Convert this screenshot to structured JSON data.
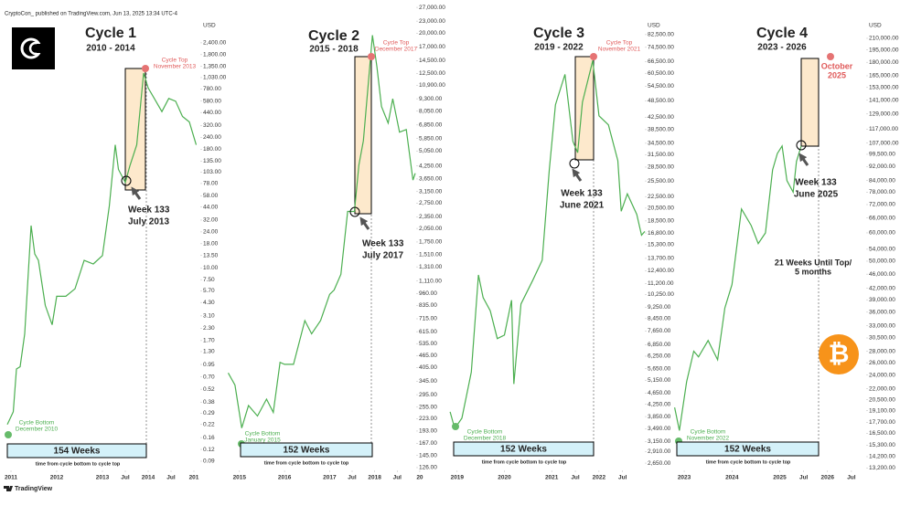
{
  "header": {
    "byline": "CryptoCon_ published on TradingView.com, Jun 13, 2025 13:34 UTC-4",
    "footer": "TradingView"
  },
  "chart_data": [
    {
      "type": "line",
      "title": "Cycle 1",
      "subtitle": "2010 - 2014",
      "axis_unit": "USD",
      "log_scale": true,
      "color": "#4caf50",
      "top_label": [
        "Cycle Top",
        "November 2013"
      ],
      "bottom_label": [
        "Cycle Bottom",
        "December 2010"
      ],
      "week_label": [
        "Week 133",
        "July 2013"
      ],
      "duration": "154 Weeks",
      "duration_note": "time from cycle bottom to cycle top",
      "xlim": [
        2010.76,
        2015.12
      ],
      "ylim": [
        0.072,
        6100
      ],
      "xticks": [
        2011,
        2012,
        2013,
        {
          "value": 2013.5,
          "label": "Jul"
        },
        2014,
        {
          "value": 2014.5,
          "label": "Jul"
        },
        {
          "value": 2015,
          "label": "201"
        }
      ],
      "yticks": [
        {
          "value": 2400,
          "label": "2,400.00"
        },
        {
          "value": 1800,
          "label": "1,800.00"
        },
        {
          "value": 1350,
          "label": "1,350.00"
        },
        {
          "value": 1030,
          "label": "1,030.00"
        },
        {
          "value": 780,
          "label": "780.00"
        },
        {
          "value": 580,
          "label": "580.00"
        },
        {
          "value": 440,
          "label": "440.00"
        },
        {
          "value": 320,
          "label": "320.00"
        },
        {
          "value": 240,
          "label": "240.00"
        },
        {
          "value": 180,
          "label": "180.00"
        },
        {
          "value": 135,
          "label": "135.00"
        },
        {
          "value": 103,
          "label": "103.00"
        },
        {
          "value": 78,
          "label": "78.00"
        },
        {
          "value": 58,
          "label": "58.00"
        },
        {
          "value": 44,
          "label": "44.00"
        },
        {
          "value": 32,
          "label": "32.00"
        },
        {
          "value": 24,
          "label": "24.00"
        },
        {
          "value": 18,
          "label": "18.00"
        },
        {
          "value": 13.5,
          "label": "13.50"
        },
        {
          "value": 10,
          "label": "10.00"
        },
        {
          "value": 7.5,
          "label": "7.50"
        },
        {
          "value": 5.7,
          "label": "5.70"
        },
        {
          "value": 4.3,
          "label": "4.30"
        },
        {
          "value": 3.1,
          "label": "3.10"
        },
        {
          "value": 2.3,
          "label": "2.30"
        },
        {
          "value": 1.7,
          "label": "1.70"
        },
        {
          "value": 1.3,
          "label": "1.30"
        },
        0.95,
        {
          "value": 0.7,
          "label": "0.70"
        },
        0.52,
        0.38,
        0.29,
        0.22,
        0.16,
        0.12,
        0.09
      ],
      "x": [
        2010.92,
        2011.05,
        2011.12,
        2011.2,
        2011.3,
        2011.44,
        2011.52,
        2011.6,
        2011.75,
        2011.9,
        2012.0,
        2012.2,
        2012.4,
        2012.6,
        2012.8,
        2013.0,
        2013.15,
        2013.28,
        2013.35,
        2013.5,
        2013.6,
        2013.75,
        2013.9,
        2014.0,
        2014.15,
        2014.3,
        2014.45,
        2014.6,
        2014.75,
        2014.9,
        2015.05
      ],
      "values": [
        0.22,
        0.3,
        0.85,
        0.9,
        2.0,
        28,
        14,
        12,
        4,
        2.5,
        5,
        5,
        6,
        12,
        11,
        13.5,
        45,
        200,
        110,
        80,
        120,
        200,
        1150,
        800,
        600,
        450,
        620,
        580,
        400,
        350,
        200
      ]
    },
    {
      "type": "line",
      "title": "Cycle 2",
      "subtitle": "2015 - 2018",
      "log_scale": true,
      "color": "#4caf50",
      "top_label": [
        "Cycle Top",
        "December 2017"
      ],
      "bottom_label": [
        "Cycle Bottom",
        "January 2015"
      ],
      "week_label": [
        "Week 133",
        "July 2017"
      ],
      "duration": "152 Weeks",
      "duration_note": "time from cycle bottom to cycle top",
      "xlim": [
        2014.72,
        2018.92
      ],
      "ylim": [
        122,
        27900
      ],
      "xticks": [
        2015,
        2016,
        2017,
        {
          "value": 2017.5,
          "label": "Jul"
        },
        2018,
        {
          "value": 2018.5,
          "label": "Jul"
        },
        {
          "value": 2019,
          "label": "20"
        }
      ],
      "yticks": [
        {
          "value": 27000,
          "label": "27,000.00"
        },
        {
          "value": 23000,
          "label": "23,000.00"
        },
        {
          "value": 20000,
          "label": "20,000.00"
        },
        {
          "value": 17000,
          "label": "17,000.00"
        },
        {
          "value": 14500,
          "label": "14,500.00"
        },
        {
          "value": 12500,
          "label": "12,500.00"
        },
        {
          "value": 10900,
          "label": "10,900.00"
        },
        {
          "value": 9300,
          "label": "9,300.00"
        },
        {
          "value": 8050,
          "label": "8,050.00"
        },
        {
          "value": 6850,
          "label": "6,850.00"
        },
        {
          "value": 5850,
          "label": "5,850.00"
        },
        {
          "value": 5050,
          "label": "5,050.00"
        },
        {
          "value": 4250,
          "label": "4,250.00"
        },
        {
          "value": 3650,
          "label": "3,650.00"
        },
        {
          "value": 3150,
          "label": "3,150.00"
        },
        {
          "value": 2750,
          "label": "2,750.00"
        },
        {
          "value": 2350,
          "label": "2,350.00"
        },
        {
          "value": 2050,
          "label": "2,050.00"
        },
        {
          "value": 1750,
          "label": "1,750.00"
        },
        {
          "value": 1510,
          "label": "1,510.00"
        },
        {
          "value": 1310,
          "label": "1,310.00"
        },
        {
          "value": 1110,
          "label": "1,110.00"
        },
        {
          "value": 960,
          "label": "960.00"
        },
        {
          "value": 835,
          "label": "835.00"
        },
        {
          "value": 715,
          "label": "715.00"
        },
        {
          "value": 615,
          "label": "615.00"
        },
        {
          "value": 535,
          "label": "535.00"
        },
        {
          "value": 465,
          "label": "465.00"
        },
        {
          "value": 405,
          "label": "405.00"
        },
        {
          "value": 345,
          "label": "345.00"
        },
        {
          "value": 295,
          "label": "295.00"
        },
        {
          "value": 255,
          "label": "255.00"
        },
        {
          "value": 223,
          "label": "223.00"
        },
        {
          "value": 193,
          "label": "193.00"
        },
        {
          "value": 167,
          "label": "167.00"
        },
        {
          "value": 145,
          "label": "145.00"
        },
        {
          "value": 126,
          "label": "126.00"
        }
      ],
      "x": [
        2014.75,
        2014.9,
        2015.05,
        2015.2,
        2015.4,
        2015.6,
        2015.75,
        2015.9,
        2016.0,
        2016.2,
        2016.45,
        2016.6,
        2016.8,
        2017.0,
        2017.1,
        2017.25,
        2017.4,
        2017.55,
        2017.65,
        2017.75,
        2017.95,
        2018.05,
        2018.15,
        2018.3,
        2018.4,
        2018.55,
        2018.7,
        2018.85,
        2018.9
      ],
      "values": [
        380,
        330,
        200,
        260,
        230,
        280,
        240,
        430,
        420,
        420,
        700,
        600,
        700,
        950,
        1000,
        1200,
        2500,
        2500,
        4300,
        5700,
        19500,
        13500,
        8500,
        7000,
        9300,
        6300,
        6500,
        3600,
        3900
      ]
    },
    {
      "type": "line",
      "title": "Cycle 3",
      "subtitle": "2019 - 2022",
      "axis_unit": "USD",
      "log_scale": true,
      "color": "#4caf50",
      "top_label": [
        "Cycle Top",
        "November 2021"
      ],
      "bottom_label": [
        "Cycle Bottom",
        "December 2018"
      ],
      "week_label": [
        "Week 133",
        "June 2021"
      ],
      "duration": "152 Weeks",
      "duration_note": "time from cycle bottom to cycle top",
      "xlim": [
        2018.81,
        2022.97
      ],
      "ylim": [
        2500,
        105000
      ],
      "xticks": [
        2019,
        2020,
        2021,
        {
          "value": 2021.5,
          "label": "Jul"
        },
        2022,
        {
          "value": 2022.5,
          "label": "Jul"
        }
      ],
      "yticks": [
        {
          "value": 82500,
          "label": "82,500.00"
        },
        {
          "value": 74500,
          "label": "74,500.00"
        },
        {
          "value": 66500,
          "label": "66,500.00"
        },
        {
          "value": 60500,
          "label": "60,500.00"
        },
        {
          "value": 54500,
          "label": "54,500.00"
        },
        {
          "value": 48500,
          "label": "48,500.00"
        },
        {
          "value": 42500,
          "label": "42,500.00"
        },
        {
          "value": 38500,
          "label": "38,500.00"
        },
        {
          "value": 34500,
          "label": "34,500.00"
        },
        {
          "value": 31500,
          "label": "31,500.00"
        },
        {
          "value": 28500,
          "label": "28,500.00"
        },
        {
          "value": 25500,
          "label": "25,500.00"
        },
        {
          "value": 22500,
          "label": "22,500.00"
        },
        {
          "value": 20500,
          "label": "20,500.00"
        },
        {
          "value": 18500,
          "label": "18,500.00"
        },
        {
          "value": 16800,
          "label": "16,800.00"
        },
        {
          "value": 15300,
          "label": "15,300.00"
        },
        {
          "value": 13700,
          "label": "13,700.00"
        },
        {
          "value": 12400,
          "label": "12,400.00"
        },
        {
          "value": 11200,
          "label": "11,200.00"
        },
        {
          "value": 10250,
          "label": "10,250.00"
        },
        {
          "value": 9250,
          "label": "9,250.00"
        },
        {
          "value": 8450,
          "label": "8,450.00"
        },
        {
          "value": 7650,
          "label": "7,650.00"
        },
        {
          "value": 6850,
          "label": "6,850.00"
        },
        {
          "value": 6250,
          "label": "6,250.00"
        },
        {
          "value": 5650,
          "label": "5,650.00"
        },
        {
          "value": 5150,
          "label": "5,150.00"
        },
        {
          "value": 4650,
          "label": "4,650.00"
        },
        {
          "value": 4250,
          "label": "4,250.00"
        },
        {
          "value": 3850,
          "label": "3,850.00"
        },
        {
          "value": 3490,
          "label": "3,490.00"
        },
        {
          "value": 3150,
          "label": "3,150.00"
        },
        {
          "value": 2910,
          "label": "2,910.00"
        },
        {
          "value": 2650,
          "label": "2,650.00"
        }
      ],
      "x": [
        2018.85,
        2018.95,
        2019.1,
        2019.3,
        2019.45,
        2019.55,
        2019.7,
        2019.85,
        2020.0,
        2020.15,
        2020.2,
        2020.35,
        2020.6,
        2020.8,
        2020.95,
        2021.08,
        2021.28,
        2021.45,
        2021.55,
        2021.65,
        2021.87,
        2022.0,
        2022.2,
        2022.4,
        2022.47,
        2022.6,
        2022.8,
        2022.9,
        2022.97
      ],
      "values": [
        4000,
        3500,
        3800,
        5500,
        12000,
        10000,
        9000,
        7200,
        7400,
        9800,
        5000,
        9500,
        11500,
        13500,
        28000,
        47000,
        60000,
        35000,
        32000,
        48000,
        67000,
        43000,
        40000,
        30000,
        20000,
        23000,
        19500,
        16500,
        17000
      ]
    },
    {
      "type": "line",
      "title": "Cycle 4",
      "subtitle": "2023 - 2026",
      "axis_unit": "USD",
      "log_scale": true,
      "color": "#4caf50",
      "top_label": [
        "October",
        "2025"
      ],
      "bottom_label": [
        "Cycle Bottom",
        "November 2022"
      ],
      "week_label": [
        "Week 133",
        "June 2025"
      ],
      "duration": "152 Weeks",
      "duration_note": "time from cycle bottom to cycle top",
      "annotation": [
        "21 Weeks Until Top/",
        "5 months"
      ],
      "xlim": [
        2022.75,
        2026.77
      ],
      "ylim": [
        13000,
        261000
      ],
      "xticks": [
        2023,
        2024,
        2025,
        {
          "value": 2025.5,
          "label": "Jul"
        },
        2026,
        {
          "value": 2026.5,
          "label": "Jul"
        }
      ],
      "yticks": [
        {
          "value": 210000,
          "label": "210,000.00"
        },
        {
          "value": 195000,
          "label": "195,000.00"
        },
        {
          "value": 180000,
          "label": "180,000.00"
        },
        {
          "value": 165000,
          "label": "165,000.00"
        },
        {
          "value": 153000,
          "label": "153,000.00"
        },
        {
          "value": 141000,
          "label": "141,000.00"
        },
        {
          "value": 129000,
          "label": "129,000.00"
        },
        {
          "value": 117000,
          "label": "117,000.00"
        },
        {
          "value": 107000,
          "label": "107,000.00"
        },
        {
          "value": 99500,
          "label": "99,500.00"
        },
        {
          "value": 92000,
          "label": "92,000.00"
        },
        {
          "value": 84000,
          "label": "84,000.00"
        },
        {
          "value": 78000,
          "label": "78,000.00"
        },
        {
          "value": 72000,
          "label": "72,000.00"
        },
        {
          "value": 66000,
          "label": "66,000.00"
        },
        {
          "value": 60000,
          "label": "60,000.00"
        },
        {
          "value": 54000,
          "label": "54,000.00"
        },
        {
          "value": 50000,
          "label": "50,000.00"
        },
        {
          "value": 46000,
          "label": "46,000.00"
        },
        {
          "value": 42000,
          "label": "42,000.00"
        },
        {
          "value": 39000,
          "label": "39,000.00"
        },
        {
          "value": 36000,
          "label": "36,000.00"
        },
        {
          "value": 33000,
          "label": "33,000.00"
        },
        {
          "value": 30500,
          "label": "30,500.00"
        },
        {
          "value": 28000,
          "label": "28,000.00"
        },
        {
          "value": 26000,
          "label": "26,000.00"
        },
        {
          "value": 24000,
          "label": "24,000.00"
        },
        {
          "value": 22000,
          "label": "22,000.00"
        },
        {
          "value": 20500,
          "label": "20,500.00"
        },
        {
          "value": 19100,
          "label": "19,100.00"
        },
        {
          "value": 17700,
          "label": "17,700.00"
        },
        {
          "value": 16500,
          "label": "16,500.00"
        },
        {
          "value": 15300,
          "label": "15,300.00"
        },
        {
          "value": 14200,
          "label": "14,200.00"
        },
        {
          "value": 13200,
          "label": "13,200.00"
        }
      ],
      "x": [
        2022.8,
        2022.9,
        2023.05,
        2023.2,
        2023.3,
        2023.5,
        2023.7,
        2023.85,
        2024.0,
        2024.2,
        2024.4,
        2024.55,
        2024.7,
        2024.85,
        2024.95,
        2025.05,
        2025.15,
        2025.28,
        2025.35,
        2025.45
      ],
      "values": [
        19500,
        16800,
        23000,
        28000,
        27000,
        30000,
        26500,
        37000,
        43000,
        70000,
        63000,
        56000,
        60000,
        90000,
        100000,
        105000,
        84000,
        78000,
        95000,
        105000
      ]
    }
  ]
}
